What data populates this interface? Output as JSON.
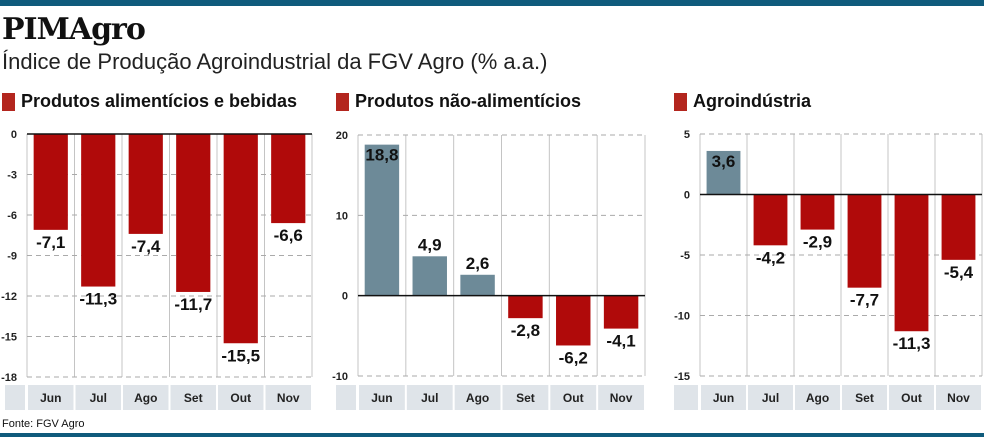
{
  "header": {
    "title": "PIMAgro",
    "subtitle": "Índice de Produção Agroindustrial da FGV Agro (% a.a.)"
  },
  "source": "Fonte: FGV Agro",
  "colors": {
    "negative": "#b00a0a",
    "positive": "#6d8a98",
    "band": "#dfe4e9",
    "legend_square": "#b3261e",
    "brand_bar": "#0f5b7c"
  },
  "chart_data": [
    {
      "type": "bar",
      "title": "Produtos alimentícios e bebidas",
      "categories": [
        "Jun",
        "Jul",
        "Ago",
        "Set",
        "Out",
        "Nov"
      ],
      "values": [
        -7.1,
        -11.3,
        -7.4,
        -11.7,
        -15.5,
        -6.6
      ],
      "labels": [
        "-7,1",
        "-11,3",
        "-7,4",
        "-11,7",
        "-15,5",
        "-6,6"
      ],
      "ylim": [
        -18,
        0
      ],
      "yticks": [
        0,
        -3,
        -6,
        -9,
        -12,
        -15,
        -18
      ],
      "ytick_labels": [
        "0",
        "-3",
        "-6",
        "-9",
        "-12",
        "-15",
        "-18"
      ],
      "grid": true
    },
    {
      "type": "bar",
      "title": "Produtos não-alimentícios",
      "categories": [
        "Jun",
        "Jul",
        "Ago",
        "Set",
        "Out",
        "Nov"
      ],
      "values": [
        18.8,
        4.9,
        2.6,
        -2.8,
        -6.2,
        -4.1
      ],
      "labels": [
        "18,8",
        "4,9",
        "2,6",
        "-2,8",
        "-6,2",
        "-4,1"
      ],
      "ylim": [
        -10,
        20
      ],
      "yticks": [
        20,
        10,
        0,
        -10
      ],
      "ytick_labels": [
        "20",
        "10",
        "0",
        "-10"
      ],
      "grid": true
    },
    {
      "type": "bar",
      "title": "Agroindústria",
      "categories": [
        "Jun",
        "Jul",
        "Ago",
        "Set",
        "Out",
        "Nov"
      ],
      "values": [
        3.6,
        -4.2,
        -2.9,
        -7.7,
        -11.3,
        -5.4
      ],
      "labels": [
        "3,6",
        "-4,2",
        "-2,9",
        "-7,7",
        "-11,3",
        "-5,4"
      ],
      "ylim": [
        -15,
        5
      ],
      "yticks": [
        5,
        0,
        -5,
        -10,
        -15
      ],
      "ytick_labels": [
        "5",
        "0",
        "-5",
        "-10",
        "-15"
      ],
      "grid": true
    }
  ]
}
